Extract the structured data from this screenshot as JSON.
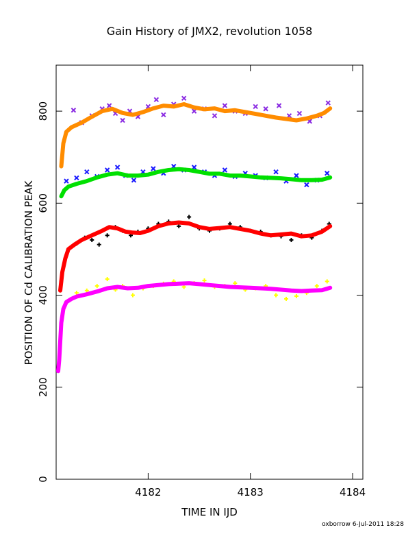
{
  "footer_text": "oxborrow  6-Jul-2011 18:28",
  "chart_data": {
    "type": "scatter",
    "title": "Gain History of JMX2, revolution 1058",
    "xlabel": "TIME IN IJD",
    "ylabel": "POSITION OF Cd CALIBRATION PEAK",
    "xlim": [
      4181.1,
      4184.1
    ],
    "ylim": [
      0,
      900
    ],
    "xticks": [
      4182,
      4183,
      4184
    ],
    "yticks": [
      0,
      200,
      400,
      600,
      800
    ],
    "grid": false,
    "series": [
      {
        "color": "#8a2be2",
        "marker": "x",
        "x": [
          4181.27,
          4181.35,
          4181.45,
          4181.55,
          4181.62,
          4181.68,
          4181.75,
          4181.82,
          4181.9,
          4182.0,
          4182.08,
          4182.15,
          4182.25,
          4182.35,
          4182.45,
          4182.55,
          4182.65,
          4182.75,
          4182.85,
          4182.95,
          4183.05,
          4183.15,
          4183.28,
          4183.38,
          4183.48,
          4183.58,
          4183.68,
          4183.76
        ],
        "y": [
          802,
          775,
          790,
          805,
          812,
          795,
          780,
          800,
          788,
          810,
          825,
          792,
          815,
          828,
          800,
          805,
          790,
          812,
          800,
          795,
          810,
          805,
          812,
          790,
          795,
          778,
          790,
          818
        ]
      },
      {
        "color": "#ff8c00",
        "marker": "line",
        "x": [
          4181.15,
          4181.17,
          4181.2,
          4181.25,
          4181.35,
          4181.45,
          4181.55,
          4181.65,
          4181.75,
          4181.85,
          4181.95,
          4182.05,
          4182.15,
          4182.25,
          4182.35,
          4182.45,
          4182.55,
          4182.65,
          4182.75,
          4182.85,
          4182.95,
          4183.05,
          4183.15,
          4183.25,
          4183.35,
          4183.45,
          4183.55,
          4183.65,
          4183.72,
          4183.78
        ],
        "y": [
          680,
          730,
          755,
          765,
          775,
          788,
          800,
          805,
          796,
          792,
          798,
          806,
          812,
          810,
          815,
          808,
          804,
          806,
          800,
          802,
          798,
          794,
          790,
          786,
          783,
          780,
          784,
          790,
          796,
          806
        ]
      },
      {
        "color": "#1a1aff",
        "marker": "x",
        "x": [
          4181.2,
          4181.3,
          4181.4,
          4181.5,
          4181.6,
          4181.7,
          4181.78,
          4181.86,
          4181.95,
          4182.05,
          4182.15,
          4182.25,
          4182.35,
          4182.45,
          4182.55,
          4182.65,
          4182.75,
          4182.85,
          4182.95,
          4183.05,
          4183.15,
          4183.25,
          4183.35,
          4183.45,
          4183.55,
          4183.65,
          4183.75
        ],
        "y": [
          648,
          655,
          668,
          658,
          672,
          678,
          660,
          650,
          668,
          675,
          665,
          680,
          672,
          678,
          668,
          660,
          672,
          658,
          665,
          660,
          655,
          668,
          648,
          660,
          640,
          650,
          665
        ]
      },
      {
        "color": "#00e000",
        "marker": "line",
        "x": [
          4181.15,
          4181.18,
          4181.22,
          4181.3,
          4181.4,
          4181.5,
          4181.6,
          4181.7,
          4181.8,
          4181.9,
          4182.0,
          4182.1,
          4182.2,
          4182.3,
          4182.4,
          4182.5,
          4182.6,
          4182.7,
          4182.8,
          4182.9,
          4183.0,
          4183.1,
          4183.2,
          4183.3,
          4183.4,
          4183.5,
          4183.6,
          4183.7,
          4183.78
        ],
        "y": [
          615,
          628,
          636,
          642,
          648,
          656,
          662,
          665,
          660,
          660,
          662,
          668,
          672,
          674,
          672,
          668,
          664,
          664,
          660,
          660,
          658,
          656,
          655,
          654,
          652,
          650,
          650,
          651,
          656
        ]
      },
      {
        "color": "#000000",
        "marker": "plus",
        "x": [
          4181.15,
          4181.22,
          4181.3,
          4181.38,
          4181.45,
          4181.52,
          4181.6,
          4181.68,
          4181.75,
          4181.83,
          4181.9,
          4182.0,
          4182.1,
          4182.2,
          4182.3,
          4182.4,
          4182.5,
          4182.6,
          4182.7,
          4182.8,
          4182.9,
          4183.0,
          4183.1,
          4183.2,
          4183.3,
          4183.4,
          4183.5,
          4183.6,
          4183.7,
          4183.77
        ],
        "y": [
          430,
          500,
          512,
          525,
          520,
          510,
          530,
          548,
          540,
          530,
          538,
          545,
          555,
          560,
          550,
          570,
          545,
          540,
          545,
          555,
          548,
          540,
          538,
          530,
          528,
          520,
          530,
          525,
          540,
          555
        ]
      },
      {
        "color": "#ff0000",
        "marker": "line",
        "x": [
          4181.14,
          4181.16,
          4181.19,
          4181.22,
          4181.28,
          4181.35,
          4181.45,
          4181.55,
          4181.62,
          4181.7,
          4181.78,
          4181.85,
          4181.92,
          4182.0,
          4182.1,
          4182.2,
          4182.3,
          4182.4,
          4182.5,
          4182.6,
          4182.7,
          4182.8,
          4182.9,
          4183.0,
          4183.1,
          4183.2,
          4183.3,
          4183.4,
          4183.5,
          4183.6,
          4183.7,
          4183.78
        ],
        "y": [
          410,
          450,
          480,
          500,
          510,
          520,
          530,
          540,
          548,
          545,
          538,
          536,
          535,
          540,
          550,
          556,
          558,
          556,
          548,
          544,
          546,
          548,
          544,
          540,
          534,
          530,
          532,
          534,
          528,
          530,
          538,
          550
        ]
      },
      {
        "color": "#ffff00",
        "marker": "plus",
        "x": [
          4181.3,
          4181.4,
          4181.5,
          4181.6,
          4181.68,
          4181.75,
          4181.85,
          4181.95,
          4182.05,
          4182.15,
          4182.25,
          4182.35,
          4182.45,
          4182.55,
          4182.65,
          4182.75,
          4182.85,
          4182.95,
          4183.05,
          4183.15,
          4183.25,
          4183.35,
          4183.45,
          4183.55,
          4183.65,
          4183.75
        ],
        "y": [
          405,
          410,
          420,
          435,
          412,
          420,
          400,
          415,
          420,
          425,
          430,
          418,
          426,
          432,
          418,
          420,
          426,
          412,
          415,
          420,
          400,
          392,
          398,
          405,
          420,
          430
        ]
      },
      {
        "color": "#ff00ff",
        "marker": "line",
        "x": [
          4181.12,
          4181.13,
          4181.14,
          4181.15,
          4181.17,
          4181.2,
          4181.25,
          4181.3,
          4181.4,
          4181.5,
          4181.6,
          4181.7,
          4181.8,
          4181.9,
          4182.0,
          4182.1,
          4182.2,
          4182.3,
          4182.4,
          4182.5,
          4182.6,
          4182.7,
          4182.8,
          4182.9,
          4183.0,
          4183.1,
          4183.2,
          4183.3,
          4183.4,
          4183.5,
          4183.6,
          4183.7,
          4183.78
        ],
        "y": [
          235,
          260,
          300,
          340,
          370,
          385,
          392,
          397,
          402,
          408,
          415,
          418,
          415,
          416,
          420,
          422,
          424,
          425,
          426,
          424,
          422,
          420,
          418,
          417,
          416,
          415,
          414,
          412,
          410,
          409,
          410,
          411,
          416
        ]
      }
    ]
  }
}
